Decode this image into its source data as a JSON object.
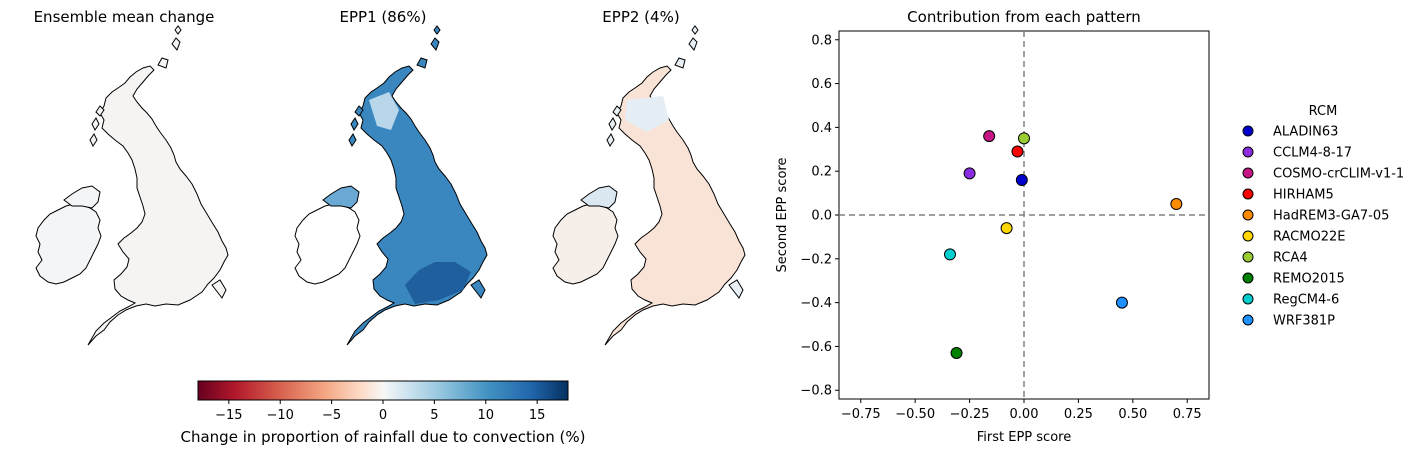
{
  "maps": [
    {
      "title": "Ensemble mean change",
      "pattern": "mean"
    },
    {
      "title": "EPP1 (86%)",
      "pattern": "epp1"
    },
    {
      "title": "EPP2 (4%)",
      "pattern": "epp2"
    }
  ],
  "colorbar": {
    "label": "Change in proportion of rainfall due to convection (%)",
    "range": [
      -18,
      18
    ],
    "ticks": [
      -15,
      -10,
      -5,
      0,
      5,
      10,
      15
    ],
    "tick_labels": [
      "−15",
      "−10",
      "−5",
      "0",
      "5",
      "10",
      "15"
    ],
    "colormap": "RdBu"
  },
  "chart_data": {
    "type": "scatter",
    "title": "Contribution from each pattern",
    "xlabel": "First EPP score",
    "ylabel": "Second EPP score",
    "xlim": [
      -0.85,
      0.85
    ],
    "ylim": [
      -0.84,
      0.84
    ],
    "xticks": [
      -0.75,
      -0.5,
      -0.25,
      0.0,
      0.25,
      0.5,
      0.75
    ],
    "xtick_labels": [
      "−0.75",
      "−0.50",
      "−0.25",
      "0.00",
      "0.25",
      "0.50",
      "0.75"
    ],
    "yticks": [
      0.8,
      0.6,
      0.4,
      0.2,
      0.0,
      -0.2,
      -0.4,
      -0.6,
      -0.8
    ],
    "ytick_labels": [
      "0.8",
      "0.6",
      "0.4",
      "0.2",
      "0.0",
      "−0.2",
      "−0.4",
      "−0.6",
      "−0.8"
    ],
    "reference_lines": {
      "x": 0,
      "y": 0
    },
    "legend_title": "RCM",
    "legend_position": "right",
    "series": [
      {
        "name": "ALADIN63",
        "x": -0.01,
        "y": 0.16,
        "color": "#0000cd"
      },
      {
        "name": "CCLM4-8-17",
        "x": -0.25,
        "y": 0.19,
        "color": "#8a2be2"
      },
      {
        "name": "COSMO-crCLIM-v1-1",
        "x": -0.16,
        "y": 0.36,
        "color": "#c71585"
      },
      {
        "name": "HIRHAM5",
        "x": -0.03,
        "y": 0.29,
        "color": "#ff0000"
      },
      {
        "name": "HadREM3-GA7-05",
        "x": 0.7,
        "y": 0.05,
        "color": "#ff8c00"
      },
      {
        "name": "RACMO22E",
        "x": -0.08,
        "y": -0.06,
        "color": "#ffd700"
      },
      {
        "name": "RCA4",
        "x": 0.0,
        "y": 0.35,
        "color": "#9acd32"
      },
      {
        "name": "REMO2015",
        "x": -0.31,
        "y": -0.63,
        "color": "#008000"
      },
      {
        "name": "RegCM4-6",
        "x": -0.34,
        "y": -0.18,
        "color": "#00ced1"
      },
      {
        "name": "WRF381P",
        "x": 0.45,
        "y": -0.4,
        "color": "#1e90ff"
      }
    ]
  }
}
